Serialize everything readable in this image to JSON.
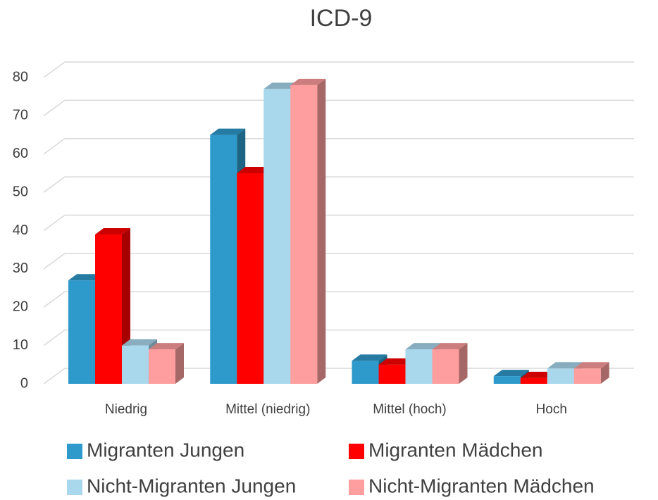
{
  "chart_data": {
    "type": "bar",
    "title": "ICD-9",
    "categories": [
      "Niedrig",
      "Mittel (niedrig)",
      "Mittel (hoch)",
      "Hoch"
    ],
    "series": [
      {
        "name": "Migranten Jungen",
        "color": "#2e9acb",
        "values": [
          27,
          65,
          6,
          2
        ]
      },
      {
        "name": "Migranten Mädchen",
        "color": "#ff0000",
        "values": [
          39,
          55,
          5,
          1.5
        ]
      },
      {
        "name": "Nicht-Migranten Jungen",
        "color": "#a9d8ed",
        "values": [
          10,
          77,
          9,
          4
        ]
      },
      {
        "name": "Nicht-Migranten Mädchen",
        "color": "#ff9e9e",
        "values": [
          9,
          78,
          9,
          4
        ]
      }
    ],
    "ylim": [
      0,
      80
    ],
    "yticks": [
      0,
      10,
      20,
      30,
      40,
      50,
      60,
      70,
      80
    ],
    "grid": true
  }
}
